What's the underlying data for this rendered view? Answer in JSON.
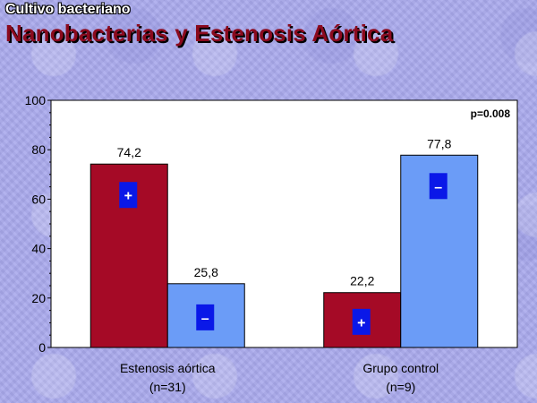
{
  "header": {
    "subtitle": "Cultivo bacteriano",
    "title": "Nanobacterias y Estenosis Aórtica"
  },
  "chart_data": {
    "type": "bar",
    "categories": [
      {
        "line1": "Estenosis aórtica",
        "line2": "(n=31)"
      },
      {
        "line1": "Grupo control",
        "line2": "(n=9)"
      }
    ],
    "series": [
      {
        "sign": "+",
        "color": "#a50a26",
        "values": [
          74.2,
          22.2
        ],
        "value_labels": [
          "74,2",
          "22,2"
        ]
      },
      {
        "sign": "–",
        "color": "#6b9cf7",
        "values": [
          25.8,
          77.8
        ],
        "value_labels": [
          "25,8",
          "77,8"
        ]
      }
    ],
    "ylim": [
      0,
      100
    ],
    "yticks": [
      "0",
      "20",
      "40",
      "60",
      "80",
      "100"
    ],
    "annotation": "p=0.008",
    "sign_box_color": "#0a18e8",
    "plot_background": "#ffffff",
    "grid": false
  }
}
